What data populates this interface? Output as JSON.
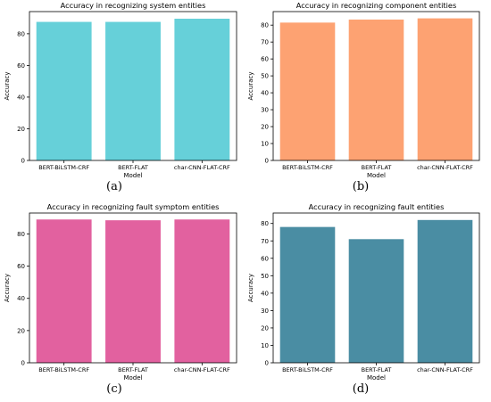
{
  "chart_data": [
    {
      "type": "bar",
      "title": "Accuracy in recognizing system entities",
      "xlabel": "Model",
      "ylabel": "Accuracy",
      "categories": [
        "BERT-BiLSTM-CRF",
        "BERT-FLAT",
        "char-CNN-FLAT-CRF"
      ],
      "values": [
        87.5,
        87.5,
        89.5
      ],
      "ylim": [
        0,
        94
      ],
      "yticks": [
        0,
        20,
        40,
        60,
        80
      ],
      "color": "#66d0d9",
      "grid": false,
      "panel_label": "(a)"
    },
    {
      "type": "bar",
      "title": "Accuracy in recognizing component entities",
      "xlabel": "Model",
      "ylabel": "Accuracy",
      "categories": [
        "BERT-BiLSTM-CRF",
        "BERT-FLAT",
        "char-CNN-FLAT-CRF"
      ],
      "values": [
        81.5,
        83.3,
        84.0
      ],
      "ylim": [
        0,
        88
      ],
      "yticks": [
        0,
        10,
        20,
        30,
        40,
        50,
        60,
        70,
        80
      ],
      "color": "#fda272",
      "grid": false,
      "panel_label": "(b)"
    },
    {
      "type": "bar",
      "title": "Accuracy in recognizing fault symptom entities",
      "xlabel": "Model",
      "ylabel": "Accuracy",
      "categories": [
        "BERT-BiLSTM-CRF",
        "BERT-FLAT",
        "char-CNN-FLAT-CRF"
      ],
      "values": [
        89.0,
        88.5,
        89.0
      ],
      "ylim": [
        0,
        93
      ],
      "yticks": [
        0,
        20,
        40,
        60,
        80
      ],
      "color": "#e2619f",
      "grid": false,
      "panel_label": "(c)"
    },
    {
      "type": "bar",
      "title": "Accuracy in recognizing fault entities",
      "xlabel": "Model",
      "ylabel": "Accuracy",
      "categories": [
        "BERT-BiLSTM-CRF",
        "BERT-FLAT",
        "char-CNN-FLAT-CRF"
      ],
      "values": [
        78.0,
        71.0,
        82.0
      ],
      "ylim": [
        0,
        86
      ],
      "yticks": [
        0,
        10,
        20,
        30,
        40,
        50,
        60,
        70,
        80
      ],
      "color": "#4a8da3",
      "grid": false,
      "panel_label": "(d)"
    }
  ]
}
